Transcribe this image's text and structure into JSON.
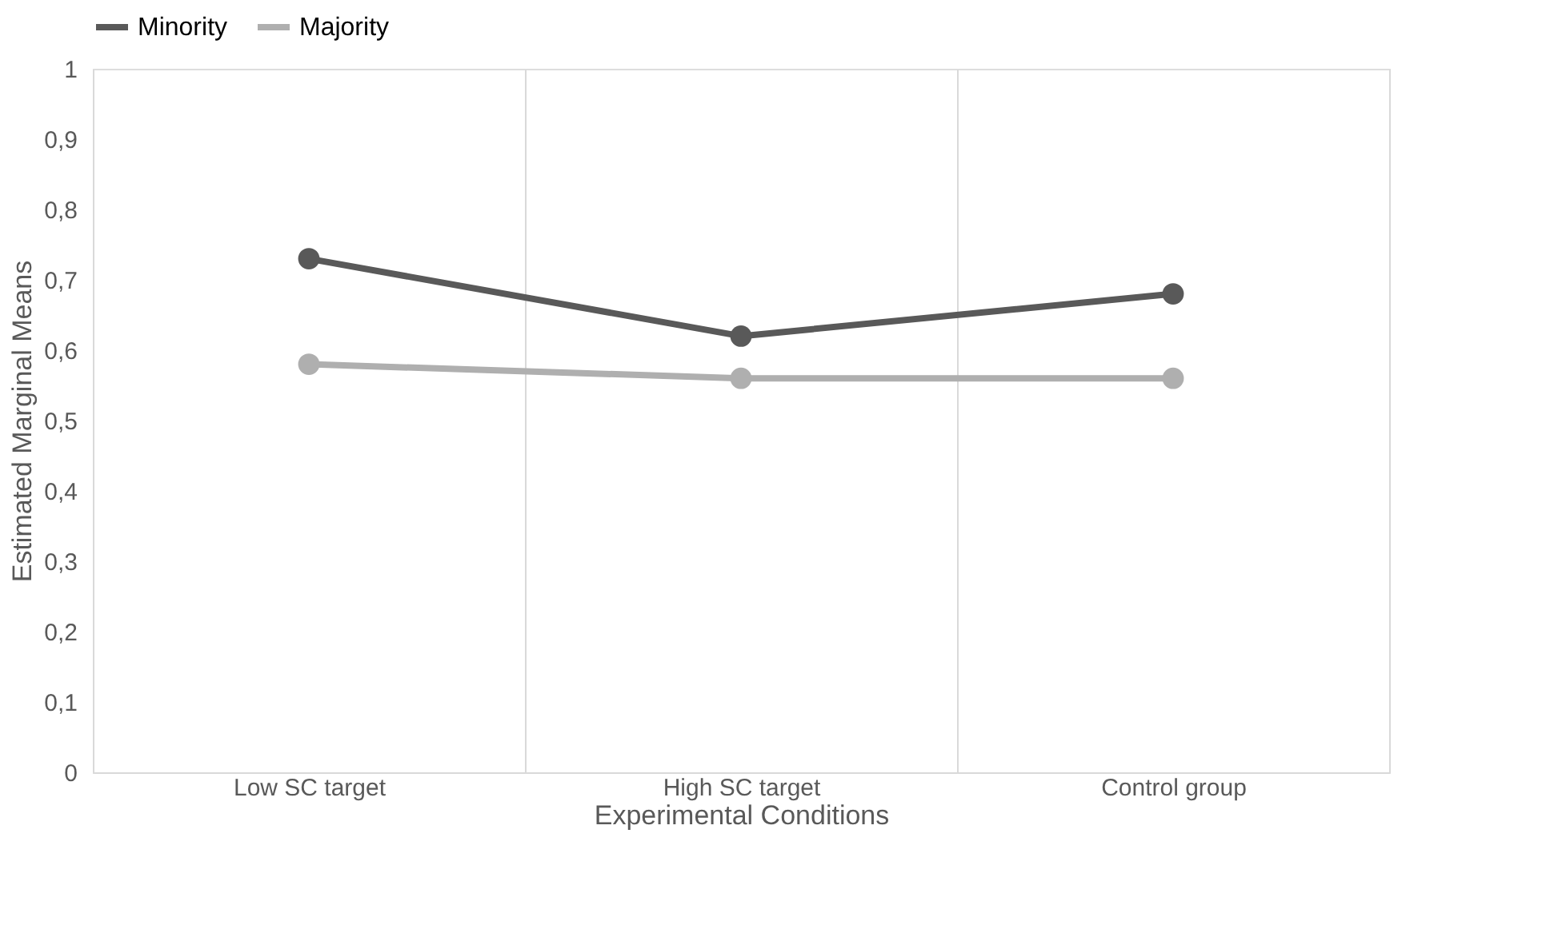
{
  "chart_data": {
    "type": "line",
    "xlabel": "Experimental Conditions",
    "ylabel": "Estimated Marginal Means",
    "categories": [
      "Low SC target",
      "High SC target",
      "Control group"
    ],
    "series": [
      {
        "name": "Minority",
        "color": "#595959",
        "values": [
          0.73,
          0.62,
          0.68
        ]
      },
      {
        "name": "Majority",
        "color": "#afafaf",
        "values": [
          0.58,
          0.56,
          0.56
        ]
      }
    ],
    "ylim": [
      0,
      1
    ],
    "yticks": [
      {
        "value": 0,
        "label": "0"
      },
      {
        "value": 0.1,
        "label": "0,1"
      },
      {
        "value": 0.2,
        "label": "0,2"
      },
      {
        "value": 0.3,
        "label": "0,3"
      },
      {
        "value": 0.4,
        "label": "0,4"
      },
      {
        "value": 0.5,
        "label": "0,5"
      },
      {
        "value": 0.6,
        "label": "0,6"
      },
      {
        "value": 0.7,
        "label": "0,7"
      },
      {
        "value": 0.8,
        "label": "0,8"
      },
      {
        "value": 0.9,
        "label": "0,9"
      },
      {
        "value": 1,
        "label": "1"
      }
    ],
    "grid": "x",
    "legend": "top",
    "marker": "circle",
    "line_style": "solid"
  }
}
